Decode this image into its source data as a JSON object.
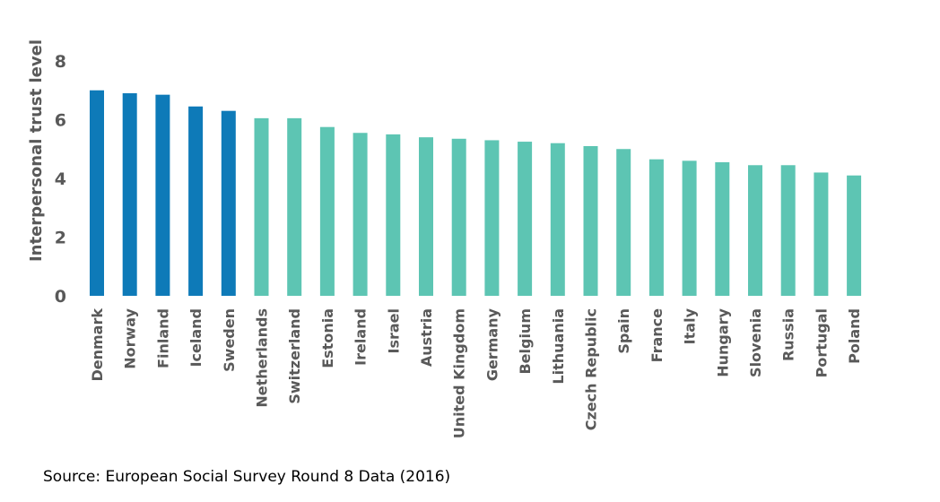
{
  "chart_data": {
    "type": "bar",
    "title": "",
    "xlabel": "",
    "ylabel": "Interpersonal trust level",
    "ylim": [
      0,
      8
    ],
    "yticks": [
      0,
      2,
      4,
      6,
      8
    ],
    "grid": false,
    "legend": "none",
    "categories": [
      "Denmark",
      "Norway",
      "Finland",
      "Iceland",
      "Sweden",
      "Netherlands",
      "Switzerland",
      "Estonia",
      "Ireland",
      "Israel",
      "Austria",
      "United Kingdom",
      "Germany",
      "Belgium",
      "Lithuania",
      "Czech Republic",
      "Spain",
      "France",
      "Italy",
      "Hungary",
      "Slovenia",
      "Russia",
      "Portugal",
      "Poland"
    ],
    "values": [
      7.0,
      6.9,
      6.85,
      6.45,
      6.3,
      6.05,
      6.05,
      5.75,
      5.55,
      5.5,
      5.4,
      5.35,
      5.3,
      5.25,
      5.2,
      5.1,
      5.0,
      4.65,
      4.6,
      4.55,
      4.45,
      4.45,
      4.2,
      4.1
    ],
    "highlight_count": 5,
    "colors": {
      "highlight": "#0E7AB8",
      "default": "#5DC5B3",
      "text": "#595959"
    }
  },
  "footer": {
    "source": "Source: European Social Survey Round 8 Data (2016)"
  }
}
